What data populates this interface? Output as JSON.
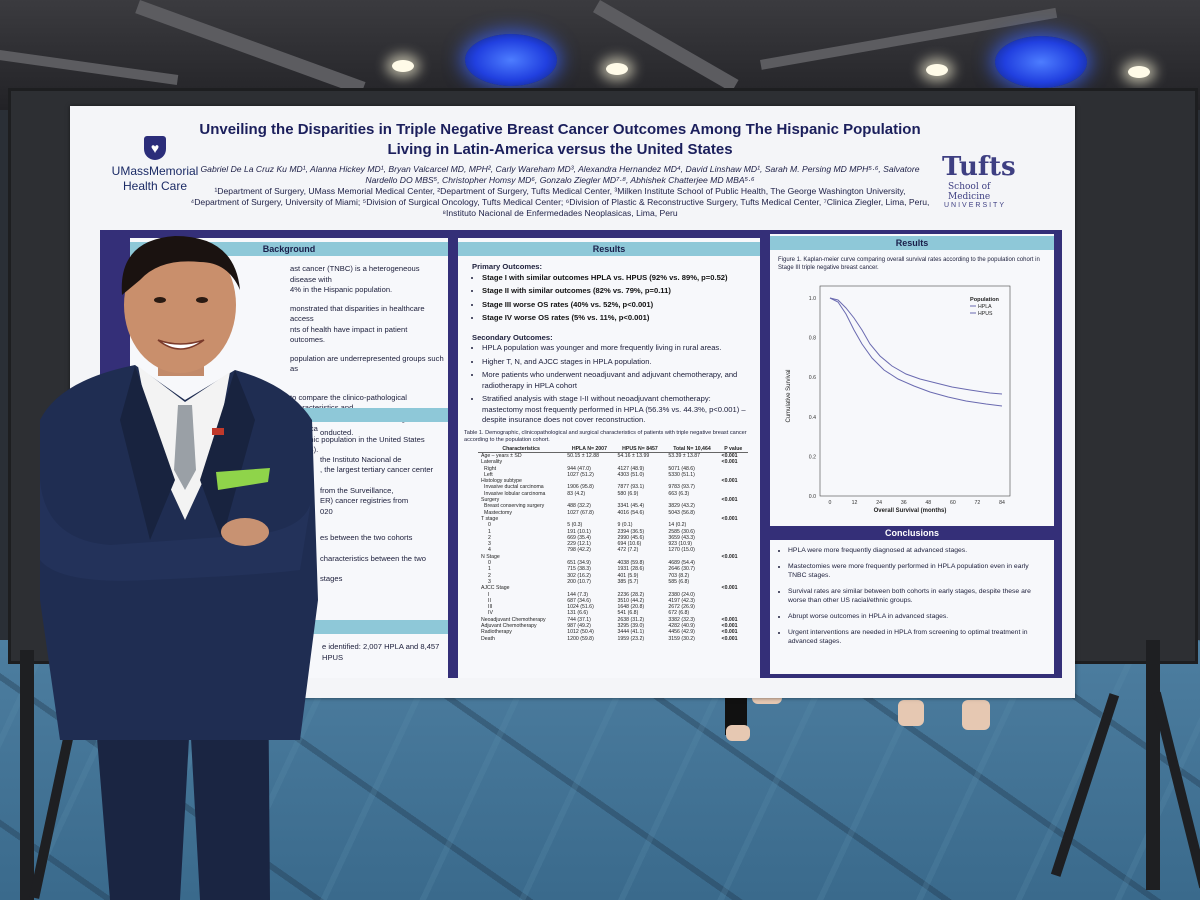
{
  "poster": {
    "title": "Unveiling the Disparities in Triple Negative Breast Cancer Outcomes Among The Hispanic Population Living in Latin-America versus the United States",
    "authors": "Gabriel De La Cruz Ku MD¹, Alanna Hickey MD¹, Bryan Valcarcel MD, MPH², Carly Wareham MD³, Alexandra Hernandez MD⁴, David Linshaw MD¹, Sarah M. Persing MD MPH⁵·⁶, Salvatore Nardello DO MBS⁵, Christopher Homsy MD⁶, Gonzalo Ziegler MD⁷·⁸, Abhishek Chatterjee MD MBA⁵·⁶",
    "affiliations": "¹Department of Surgery, UMass Memorial Medical Center, ²Department of Surgery, Tufts Medical Center, ³Milken Institute School of Public Health, The George Washington University, ⁴Department of Surgery, University of Miami; ⁵Division of Surgical Oncology, Tufts Medical Center; ⁶Division of Plastic & Reconstructive Surgery, Tufts Medical Center, ⁷Clinica Ziegler, Lima, Peru, ⁸Instituto Nacional de Enfermedades Neoplasicas, Lima, Peru",
    "logo_left_line1": "UMassMemorial",
    "logo_left_line2": "Health Care",
    "logo_right_main": "Tufts",
    "logo_right_sub1": "School of",
    "logo_right_sub2": "Medicine",
    "logo_right_univ": "UNIVERSITY",
    "background": {
      "heading": "Background",
      "line1": "ast cancer (TNBC) is a heterogeneous disease with",
      "line2": "4% in the Hispanic population.",
      "line3": "monstrated that disparities in healthcare access",
      "line4": "nts of health have impact in patient outcomes.",
      "line5": "population are underrepresented groups such as",
      "line6": "to compare the clinico-pathological characteristics and",
      "line7": "Hispanic females with TNBC living in Latin America",
      "line8": "Hispanic population in the United States (HPUS)."
    },
    "methods": {
      "heading": "Methods",
      "line1": "onducted.",
      "line2": "the Instituto Nacional de",
      "line3": ", the largest tertiary cancer center",
      "line4": "from the Surveillance,",
      "line5": "ER) cancer registries from",
      "line6": "020",
      "line7": "es between the two cohorts",
      "line8": "characteristics between the two",
      "line9": "stages"
    },
    "results_left": {
      "heading": "Results",
      "line1": "e identified: 2,007 HPLA and 8,457 HPUS"
    },
    "results_mid": {
      "heading": "Results",
      "primary_title": "Primary Outcomes:",
      "p1": "Stage I with similar outcomes HPLA vs. HPUS (92% vs. 89%, p=0.52)",
      "p2": "Stage II with similar outcomes (82% vs. 79%, p=0.11)",
      "p3": "Stage III worse OS rates (40% vs. 52%, p<0.001)",
      "p4": "Stage IV worse OS rates (5% vs. 11%, p<0.001)",
      "secondary_title": "Secondary Outcomes:",
      "s1": "HPLA population was younger and more frequently living in rural areas.",
      "s2": "Higher T, N, and AJCC stages in HPLA population.",
      "s3": "More patients who underwent neoadjuvant and adjuvant chemotherapy, and radiotherapy in HPLA cohort",
      "s4": "Stratified analysis with stage I-II without neoadjuvant chemotherapy: mastectomy most frequently performed in HPLA (56.3% vs. 44.3%, p<0.001) – despite insurance does not cover reconstruction.",
      "table_caption": "Table 1. Demographic, clinicopathological and surgical characteristics of patients with triple negative breast cancer according to the population cohort.",
      "table_headers": [
        "Characteristics",
        "HPLA N= 2007",
        "HPUS N= 8457",
        "Total N= 10,464",
        "P value"
      ],
      "table_rows": [
        [
          "Age – years ± SD",
          "50.15 ± 12.88",
          "54.16 ± 13.99",
          "53.39 ± 13.87",
          "<0.001"
        ],
        [
          "Laterality",
          "",
          "",
          "",
          "<0.001"
        ],
        [
          "Right",
          "944 (47.0)",
          "4127 (48.9)",
          "5071 (48.6)",
          ""
        ],
        [
          "Left",
          "1027 (51.2)",
          "4303 (51.0)",
          "5330 (51.1)",
          ""
        ],
        [
          "Histology subtype",
          "",
          "",
          "",
          "<0.001"
        ],
        [
          "Invasive ductal carcinoma",
          "1906 (95.8)",
          "7877 (93.1)",
          "9783 (93.7)",
          ""
        ],
        [
          "Invasive lobular carcinoma",
          "83 (4.2)",
          "580 (6.9)",
          "663 (6.3)",
          ""
        ],
        [
          "Surgery",
          "",
          "",
          "",
          "<0.001"
        ],
        [
          "Breast conserving surgery",
          "488 (32.2)",
          "3341 (45.4)",
          "3829 (43.2)",
          ""
        ],
        [
          "Mastectomy",
          "1027 (67.8)",
          "4016 (54.6)",
          "5043 (56.8)",
          ""
        ],
        [
          "T stage",
          "",
          "",
          "",
          "<0.001"
        ],
        [
          "0",
          "5 (0.3)",
          "9 (0.1)",
          "14 (0.2)",
          ""
        ],
        [
          "1",
          "191 (10.1)",
          "2394 (36.5)",
          "2585 (30.6)",
          ""
        ],
        [
          "2",
          "669 (35.4)",
          "2990 (45.6)",
          "3659 (43.3)",
          ""
        ],
        [
          "3",
          "229 (12.1)",
          "694 (10.6)",
          "923 (10.9)",
          ""
        ],
        [
          "4",
          "798 (42.2)",
          "472 (7.2)",
          "1270 (15.0)",
          ""
        ],
        [
          "N Stage",
          "",
          "",
          "",
          "<0.001"
        ],
        [
          "0",
          "651 (34.9)",
          "4038 (59.8)",
          "4689 (54.4)",
          ""
        ],
        [
          "1",
          "715 (38.3)",
          "1931 (28.6)",
          "2646 (30.7)",
          ""
        ],
        [
          "2",
          "302 (16.2)",
          "401 (5.9)",
          "703 (8.2)",
          ""
        ],
        [
          "3",
          "200 (10.7)",
          "385 (5.7)",
          "585 (6.8)",
          ""
        ],
        [
          "AJCC Stage",
          "",
          "",
          "",
          "<0.001"
        ],
        [
          "I",
          "144 (7.3)",
          "2236 (28.2)",
          "2380 (24.0)",
          ""
        ],
        [
          "II",
          "687 (34.6)",
          "3510 (44.2)",
          "4197 (42.3)",
          ""
        ],
        [
          "III",
          "1024 (51.6)",
          "1648 (20.8)",
          "2672 (26.9)",
          ""
        ],
        [
          "IV",
          "131 (6.6)",
          "541 (6.8)",
          "672 (6.8)",
          ""
        ],
        [
          "Neoadjuvant Chemotherapy",
          "744 (37.1)",
          "2638 (31.2)",
          "3382 (32.3)",
          "<0.001"
        ],
        [
          "Adjuvant Chemotherapy",
          "987 (49.2)",
          "3295 (39.0)",
          "4282 (40.9)",
          "<0.001"
        ],
        [
          "Radiotherapy",
          "1012 (50.4)",
          "3444 (41.1)",
          "4456 (42.9)",
          "<0.001"
        ],
        [
          "Death",
          "1200 (59.8)",
          "1959 (23.2)",
          "3159 (30.2)",
          "<0.001"
        ]
      ]
    },
    "results_right": {
      "heading": "Results",
      "figure_caption": "Figure 1. Kaplan-meier curve comparing overall survival rates according to the population cohort in Stage III triple negative breast cancer.",
      "ylabel": "Cumulative Survival",
      "xlabel": "Overall Survival (months)",
      "legend_title": "Population",
      "legend_1": "HPLA",
      "legend_2": "HPUS",
      "y_ticks": [
        "1.0",
        "0.8",
        "0.6",
        "0.4",
        "0.2",
        "0.0"
      ],
      "x_ticks": [
        "0",
        "12",
        "24",
        "36",
        "48",
        "60",
        "72",
        "84"
      ]
    },
    "conclusions": {
      "heading": "Conclusions",
      "c1": "HPLA were more frequently diagnosed at advanced stages.",
      "c2": "Mastectomies were more frequently performed in HPLA population even in early TNBC stages.",
      "c3": "Survival rates are similar between both cohorts in early stages, despite these are worse than other US racial/ethnic groups.",
      "c4": "Abrupt worse outcomes in HPLA in advanced stages.",
      "c5": "Urgent interventions are needed in HPLA from screening to optimal treatment in advanced stages."
    }
  },
  "colors": {
    "poster_frame": "#342f78",
    "panel_header": "#8ec8d8",
    "carpet": "#4d7ea0",
    "suit": "#1d2a4a",
    "pocket_square": "#8fd44a"
  }
}
